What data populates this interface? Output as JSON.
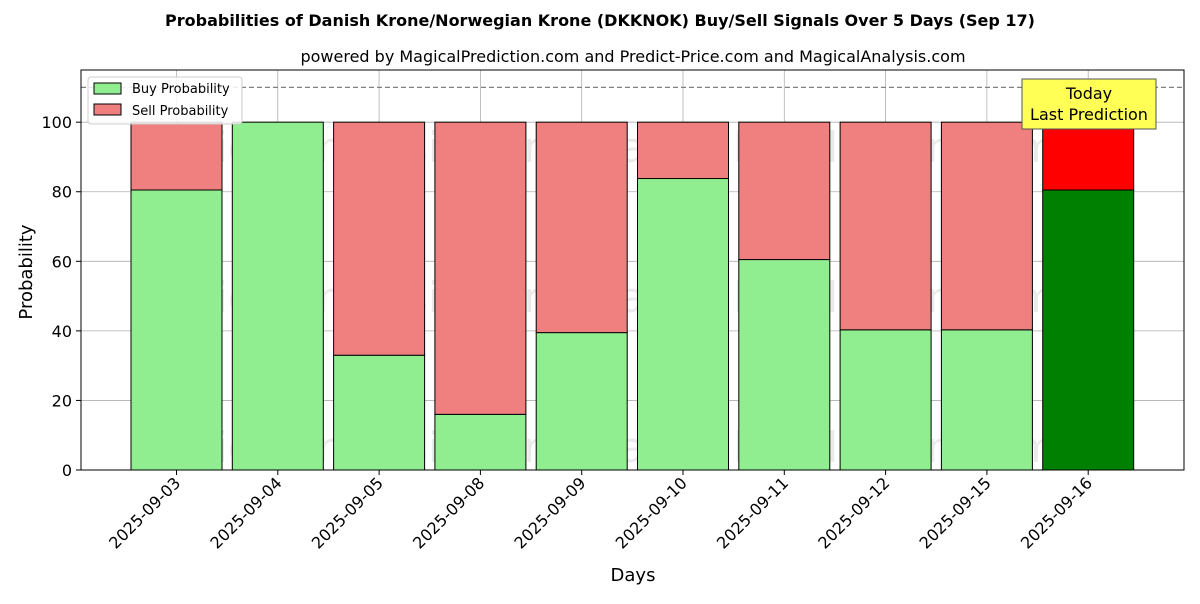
{
  "chart_data": {
    "type": "bar",
    "title": "Probabilities of Danish Krone/Norwegian Krone (DKKNOK) Buy/Sell Signals Over 5 Days (Sep 17)",
    "subtitle": "powered by MagicalPrediction.com and Predict-Price.com and MagicalAnalysis.com",
    "xlabel": "Days",
    "ylabel": "Probability",
    "ylim": [
      0,
      115
    ],
    "yticks": [
      0,
      20,
      40,
      60,
      80,
      100
    ],
    "grid": true,
    "legend_position": "top-left",
    "categories": [
      "2025-09-03",
      "2025-09-04",
      "2025-09-05",
      "2025-09-08",
      "2025-09-09",
      "2025-09-10",
      "2025-09-11",
      "2025-09-12",
      "2025-09-15",
      "2025-09-16"
    ],
    "series": [
      {
        "name": "Buy Probability",
        "color": "#90ee90",
        "highlight_color": "#008000",
        "values": [
          80.5,
          100,
          33,
          16,
          39.5,
          83.8,
          60.5,
          40.3,
          40.3,
          80.5
        ]
      },
      {
        "name": "Sell Probability",
        "color": "#f08080",
        "highlight_color": "#ff0000",
        "values": [
          19.5,
          0,
          67,
          84,
          60.5,
          16.2,
          39.5,
          59.7,
          59.7,
          19.5
        ]
      }
    ],
    "highlight_index": 9,
    "reference_line": {
      "y": 110,
      "style": "dashed",
      "color": "#808080"
    },
    "annotation": {
      "text_line1": "Today",
      "text_line2": "Last Prediction",
      "background": "#ffff55"
    },
    "watermarks": [
      "MagicalAnalysis.com",
      "MagicalPrediction.com"
    ]
  }
}
